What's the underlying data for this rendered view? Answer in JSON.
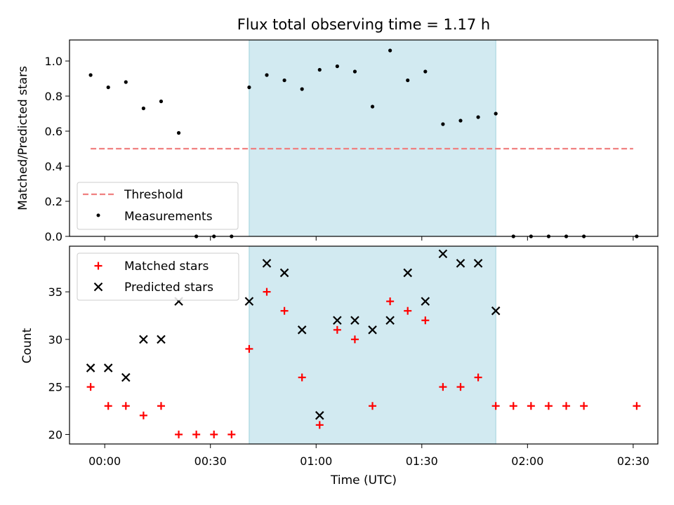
{
  "title": "Flux total observing time = 1.17 h",
  "colors": {
    "threshold": "#f08080",
    "measurements": "#000000",
    "matched": "#ff0000",
    "predicted": "#000000",
    "shade": "#add8e6"
  },
  "chart_data": [
    {
      "type": "scatter",
      "ylabel": "Matched/Predicted stars",
      "ylim": [
        0,
        1.12
      ],
      "yticks": [
        "0.0",
        "0.2",
        "0.4",
        "0.6",
        "0.8",
        "1.0"
      ],
      "legend_placement": "lower-left",
      "shaded_x_range": [
        "00:41",
        "01:51"
      ],
      "series": [
        {
          "name": "Threshold",
          "style": "dashed-line",
          "x": [
            "-00:04",
            "02:30"
          ],
          "y": [
            0.5,
            0.5
          ]
        },
        {
          "name": "Measurements",
          "style": "dot",
          "x": [
            "-00:04",
            "00:01",
            "00:06",
            "00:11",
            "00:16",
            "00:21",
            "00:26",
            "00:31",
            "00:36",
            "00:41",
            "00:46",
            "00:51",
            "00:56",
            "01:01",
            "01:06",
            "01:11",
            "01:16",
            "01:21",
            "01:26",
            "01:31",
            "01:36",
            "01:41",
            "01:46",
            "01:51",
            "01:56",
            "02:01",
            "02:06",
            "02:11",
            "02:16",
            "02:31"
          ],
          "y": [
            0.92,
            0.85,
            0.88,
            0.73,
            0.77,
            0.59,
            0,
            0,
            0,
            0.85,
            0.92,
            0.89,
            0.84,
            0.95,
            0.97,
            0.94,
            0.74,
            1.06,
            0.89,
            0.94,
            0.64,
            0.66,
            0.68,
            0.7,
            0,
            0,
            0,
            0,
            0,
            0
          ]
        }
      ]
    },
    {
      "type": "scatter",
      "xlabel": "Time (UTC)",
      "ylabel": "Count",
      "ylim": [
        19,
        39.8
      ],
      "yticks": [
        "20",
        "25",
        "30",
        "35"
      ],
      "xticks": [
        "00:00",
        "00:30",
        "01:00",
        "01:30",
        "02:00",
        "02:30"
      ],
      "legend_placement": "top-left",
      "shaded_x_range": [
        "00:41",
        "01:51"
      ],
      "series": [
        {
          "name": "Matched stars",
          "marker": "plus",
          "x": [
            "-00:04",
            "00:01",
            "00:06",
            "00:11",
            "00:16",
            "00:21",
            "00:26",
            "00:31",
            "00:36",
            "00:41",
            "00:46",
            "00:51",
            "00:56",
            "01:01",
            "01:06",
            "01:11",
            "01:16",
            "01:21",
            "01:26",
            "01:31",
            "01:36",
            "01:41",
            "01:46",
            "01:51",
            "01:56",
            "02:01",
            "02:06",
            "02:11",
            "02:16",
            "02:31"
          ],
          "y": [
            25,
            23,
            23,
            22,
            23,
            20,
            20,
            20,
            20,
            29,
            35,
            33,
            26,
            21,
            31,
            30,
            23,
            34,
            33,
            32,
            25,
            25,
            26,
            23,
            23,
            23,
            23,
            23,
            23,
            23
          ]
        },
        {
          "name": "Predicted stars",
          "marker": "x",
          "x": [
            "-00:04",
            "00:01",
            "00:06",
            "00:11",
            "00:16",
            "00:21",
            "00:41",
            "00:46",
            "00:51",
            "00:56",
            "01:01",
            "01:06",
            "01:11",
            "01:16",
            "01:21",
            "01:26",
            "01:31",
            "01:36",
            "01:41",
            "01:46",
            "01:51"
          ],
          "y": [
            27,
            27,
            26,
            30,
            30,
            34,
            34,
            38,
            37,
            31,
            22,
            32,
            32,
            31,
            32,
            37,
            34,
            39,
            38,
            38,
            33
          ]
        }
      ]
    }
  ]
}
